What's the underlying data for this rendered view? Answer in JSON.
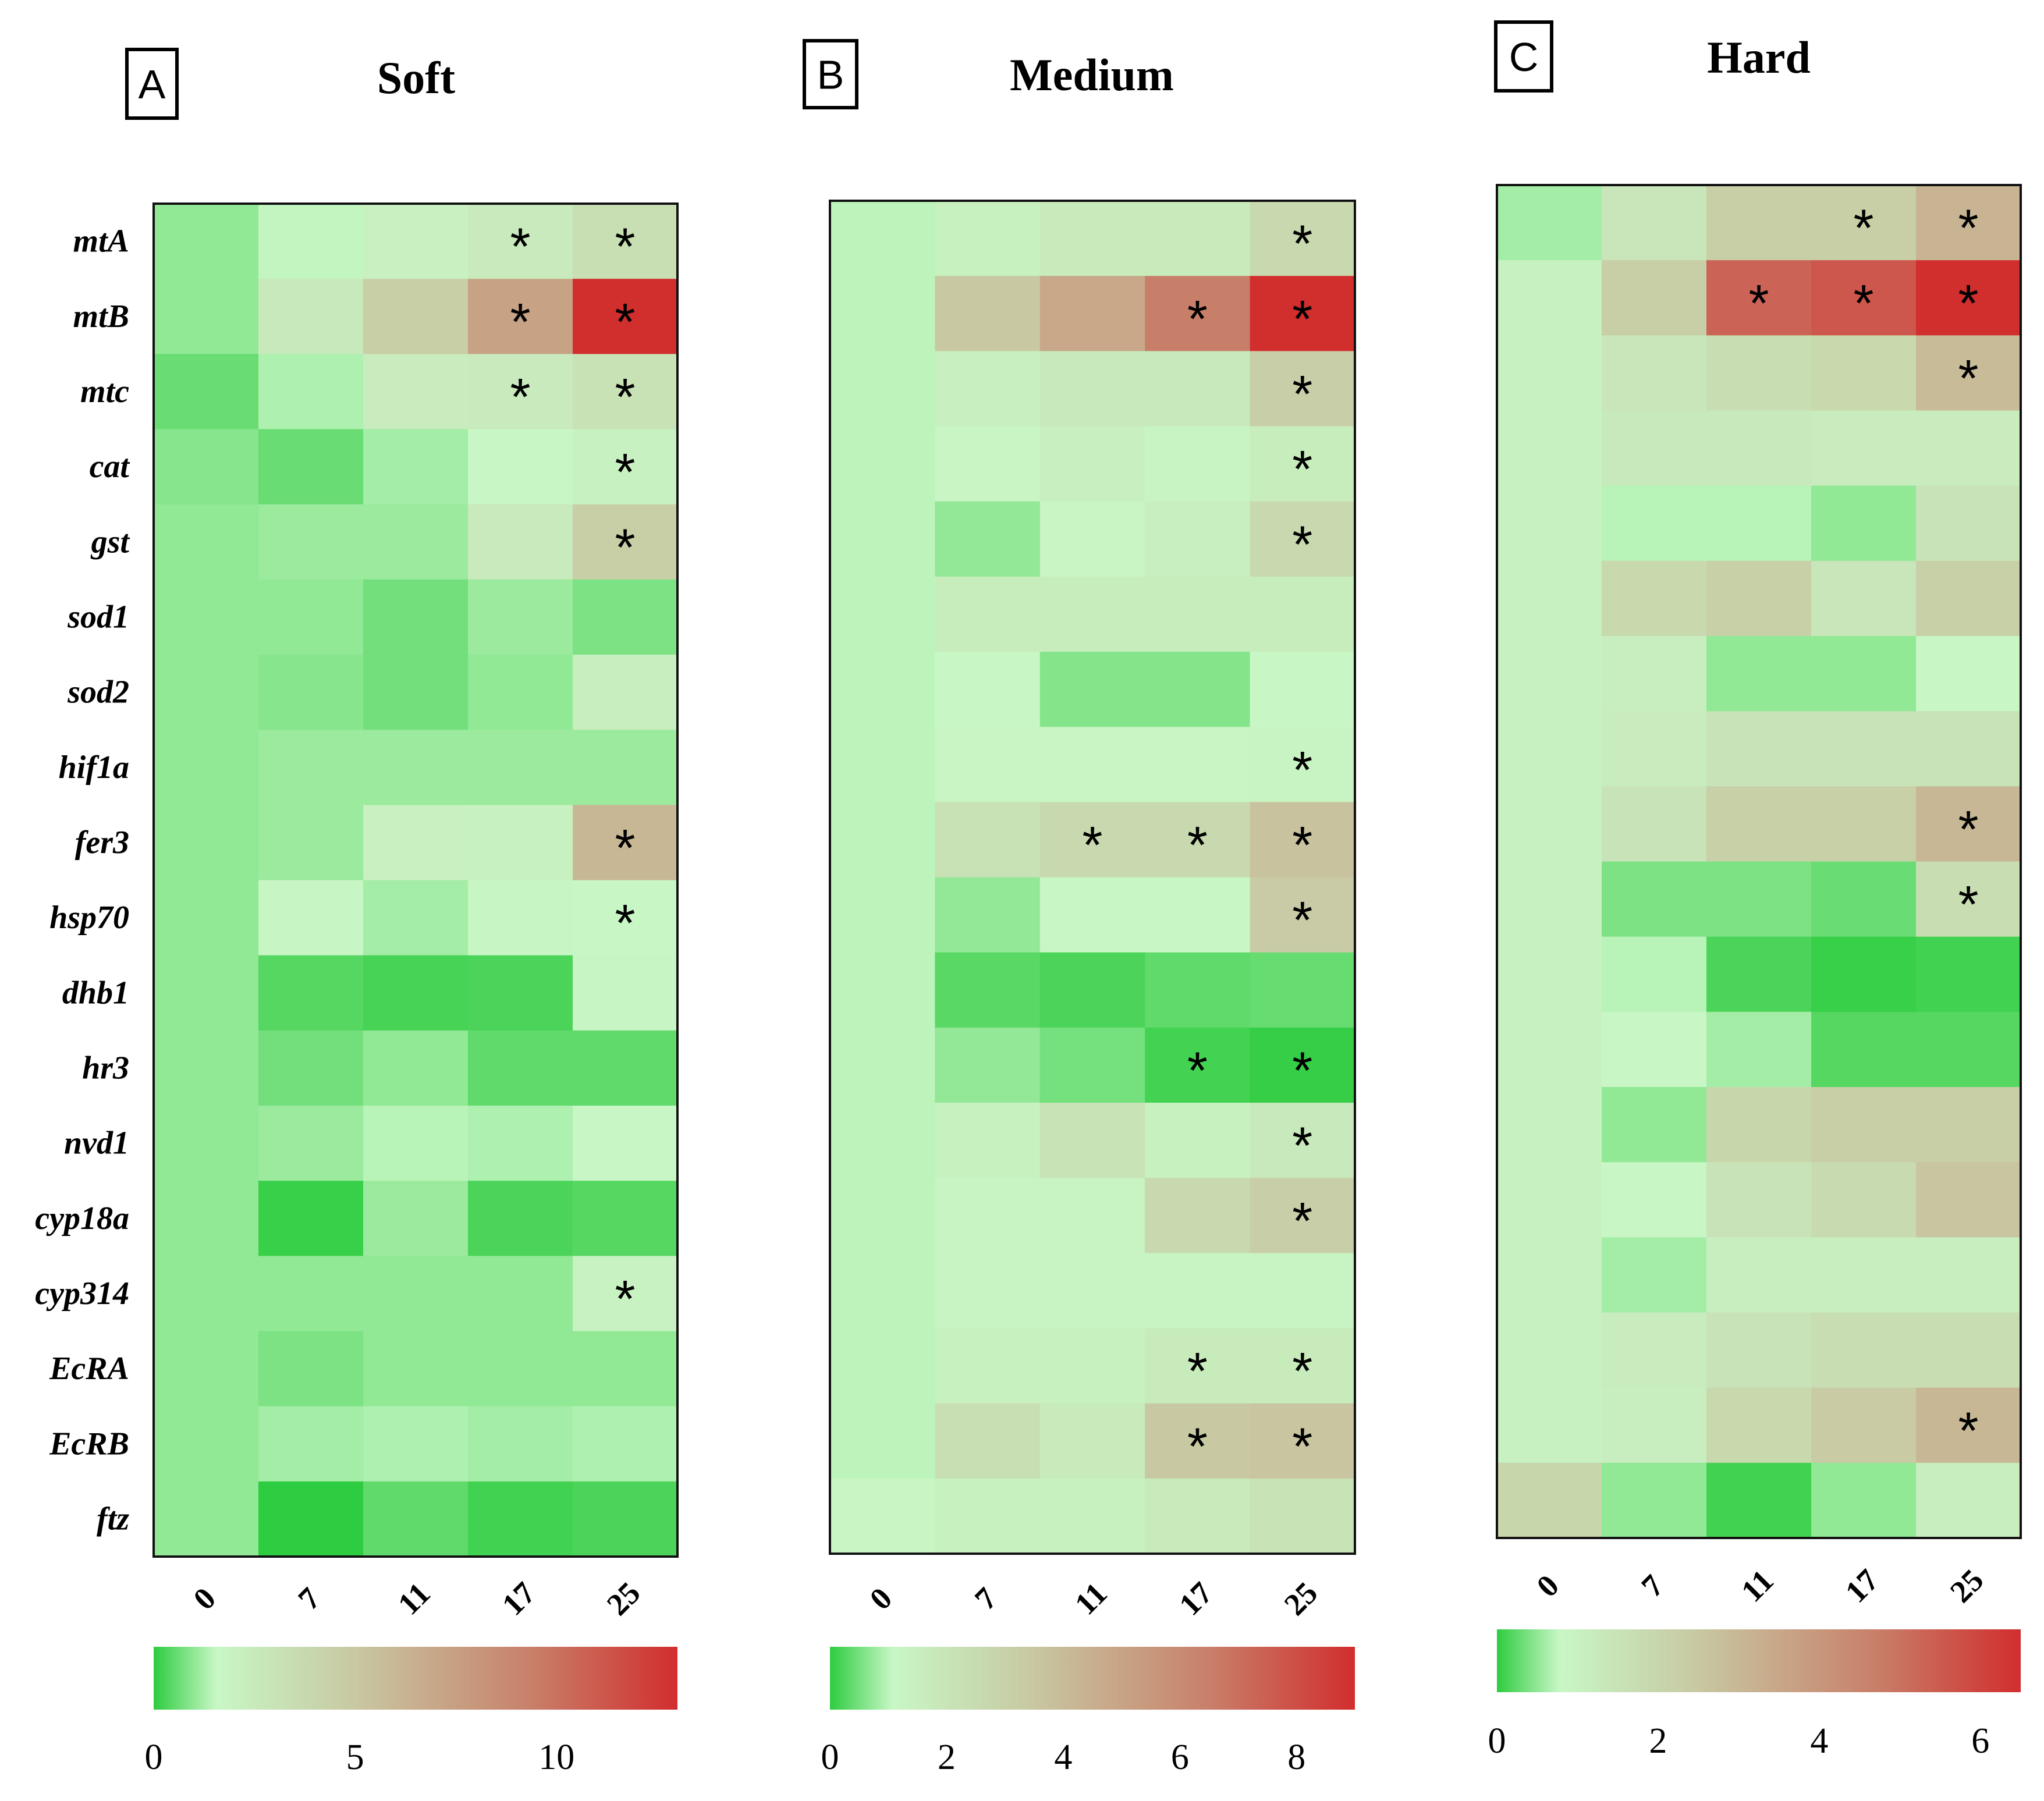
{
  "genes": [
    "mtA",
    "mtB",
    "mtc",
    "cat",
    "gst",
    "sod1",
    "sod2",
    "hif1a",
    "fer3",
    "hsp70",
    "dhb1",
    "hr3",
    "nvd1",
    "cyp18a",
    "cyp314",
    "EcRA",
    "EcRB",
    "ftz"
  ],
  "chart_data": [
    {
      "type": "heatmap",
      "letter": "A",
      "title": "Soft",
      "x": [
        "0",
        "7",
        "11",
        "17",
        "25"
      ],
      "colorbar": {
        "min": 0,
        "max": 13,
        "ticks": [
          0,
          5,
          10
        ],
        "colors": [
          "#2ecc40",
          "#c8f7c5",
          "#c8c9a3",
          "#c8806a",
          "#d12e2e"
        ]
      },
      "values": [
        [
          1.0,
          1.5,
          2.1,
          2.5,
          3.3
        ],
        [
          1.0,
          2.6,
          4.6,
          7.3,
          13.0
        ],
        [
          0.6,
          1.3,
          2.4,
          2.5,
          3.1
        ],
        [
          0.9,
          0.6,
          1.2,
          1.6,
          2.0
        ],
        [
          1.0,
          1.1,
          1.1,
          2.5,
          4.6
        ],
        [
          1.0,
          1.0,
          0.7,
          1.1,
          0.8
        ],
        [
          1.0,
          0.9,
          0.7,
          1.0,
          2.2
        ],
        [
          1.0,
          1.1,
          1.1,
          1.1,
          1.1
        ],
        [
          1.0,
          1.1,
          2.1,
          2.0,
          6.0
        ],
        [
          1.0,
          1.7,
          1.2,
          1.7,
          1.6
        ],
        [
          1.0,
          0.4,
          0.25,
          0.3,
          1.7
        ],
        [
          1.0,
          0.7,
          1.0,
          0.5,
          0.5
        ],
        [
          1.0,
          1.1,
          1.4,
          1.3,
          1.6
        ],
        [
          1.0,
          0.1,
          1.1,
          0.3,
          0.4
        ],
        [
          1.0,
          1.0,
          1.0,
          1.0,
          1.9
        ],
        [
          1.0,
          0.8,
          1.0,
          1.0,
          1.0
        ],
        [
          1.0,
          1.2,
          1.3,
          1.2,
          1.3
        ],
        [
          1.0,
          0.0,
          0.5,
          0.2,
          0.3
        ]
      ],
      "significant": [
        [
          0,
          3
        ],
        [
          0,
          4
        ],
        [
          1,
          3
        ],
        [
          1,
          4
        ],
        [
          2,
          3
        ],
        [
          2,
          4
        ],
        [
          3,
          4
        ],
        [
          4,
          4
        ],
        [
          8,
          4
        ],
        [
          9,
          4
        ],
        [
          14,
          4
        ]
      ]
    },
    {
      "type": "heatmap",
      "letter": "B",
      "title": "Medium",
      "x": [
        "0",
        "7",
        "11",
        "17",
        "25"
      ],
      "colorbar": {
        "min": 0,
        "max": 9,
        "ticks": [
          0,
          2,
          4,
          6,
          8
        ],
        "colors": [
          "#2ecc40",
          "#c8f7c5",
          "#c8c9a3",
          "#c8806a",
          "#d12e2e"
        ]
      },
      "values": [
        [
          1.0,
          1.4,
          1.7,
          1.7,
          2.6
        ],
        [
          1.0,
          3.4,
          4.8,
          6.5,
          9.0
        ],
        [
          1.0,
          1.5,
          1.8,
          1.8,
          3.1
        ],
        [
          1.0,
          1.2,
          1.5,
          1.3,
          1.6
        ],
        [
          1.0,
          0.7,
          1.2,
          1.5,
          2.6
        ],
        [
          1.0,
          1.6,
          1.6,
          1.6,
          1.6
        ],
        [
          1.0,
          1.1,
          0.6,
          0.6,
          1.1
        ],
        [
          1.0,
          1.2,
          1.2,
          1.2,
          1.3
        ],
        [
          1.0,
          2.2,
          2.6,
          2.6,
          3.7
        ],
        [
          1.0,
          0.7,
          1.1,
          1.1,
          3.3
        ],
        [
          1.0,
          0.3,
          0.2,
          0.35,
          0.4
        ],
        [
          1.0,
          0.7,
          0.5,
          0.15,
          0.05
        ],
        [
          1.0,
          1.4,
          2.1,
          1.4,
          1.8
        ],
        [
          1.0,
          1.3,
          1.3,
          2.6,
          3.1
        ],
        [
          1.0,
          1.3,
          1.3,
          1.3,
          1.3
        ],
        [
          1.0,
          1.4,
          1.4,
          1.7,
          1.7
        ],
        [
          1.0,
          2.3,
          1.7,
          3.4,
          3.6
        ],
        [
          1.2,
          1.4,
          1.4,
          1.7,
          2.1
        ]
      ],
      "significant": [
        [
          0,
          4
        ],
        [
          1,
          3
        ],
        [
          1,
          4
        ],
        [
          2,
          4
        ],
        [
          3,
          4
        ],
        [
          4,
          4
        ],
        [
          7,
          4
        ],
        [
          8,
          2
        ],
        [
          8,
          3
        ],
        [
          8,
          4
        ],
        [
          9,
          4
        ],
        [
          11,
          3
        ],
        [
          11,
          4
        ],
        [
          12,
          4
        ],
        [
          13,
          4
        ],
        [
          15,
          3
        ],
        [
          15,
          4
        ],
        [
          16,
          3
        ],
        [
          16,
          4
        ]
      ]
    },
    {
      "type": "heatmap",
      "letter": "C",
      "title": "Hard",
      "x": [
        "0",
        "7",
        "11",
        "17",
        "25"
      ],
      "colorbar": {
        "min": 0,
        "max": 6.5,
        "ticks": [
          0,
          2,
          4,
          6
        ],
        "colors": [
          "#2ecc40",
          "#c8f7c5",
          "#c8c9a3",
          "#c8806a",
          "#d12e2e"
        ]
      },
      "values": [
        [
          0.6,
          1.4,
          2.3,
          2.3,
          3.1
        ],
        [
          1.0,
          2.3,
          5.3,
          5.6,
          6.5
        ],
        [
          1.0,
          1.4,
          1.7,
          1.9,
          2.9
        ],
        [
          1.0,
          1.3,
          1.3,
          1.2,
          1.2
        ],
        [
          1.0,
          0.7,
          0.7,
          0.5,
          1.5
        ],
        [
          1.0,
          1.9,
          2.2,
          1.4,
          2.2
        ],
        [
          1.0,
          1.1,
          0.5,
          0.5,
          0.8
        ],
        [
          1.0,
          1.2,
          1.5,
          1.5,
          1.5
        ],
        [
          1.0,
          1.5,
          2.2,
          2.2,
          3.0
        ],
        [
          1.0,
          0.4,
          0.4,
          0.3,
          1.7
        ],
        [
          1.0,
          0.7,
          0.15,
          0.05,
          0.1
        ],
        [
          1.0,
          0.8,
          0.6,
          0.2,
          0.2
        ],
        [
          1.0,
          0.5,
          2.0,
          2.3,
          2.3
        ],
        [
          1.0,
          0.8,
          1.5,
          1.8,
          2.6
        ],
        [
          1.0,
          0.6,
          1.1,
          1.1,
          1.1
        ],
        [
          1.0,
          1.2,
          1.5,
          1.7,
          1.7
        ],
        [
          1.0,
          1.1,
          1.9,
          2.4,
          3.0
        ],
        [
          2.0,
          0.5,
          0.1,
          0.5,
          1.1
        ]
      ],
      "significant": [
        [
          0,
          3
        ],
        [
          0,
          4
        ],
        [
          1,
          2
        ],
        [
          1,
          3
        ],
        [
          1,
          4
        ],
        [
          2,
          4
        ],
        [
          8,
          4
        ],
        [
          9,
          4
        ],
        [
          16,
          4
        ]
      ]
    }
  ]
}
